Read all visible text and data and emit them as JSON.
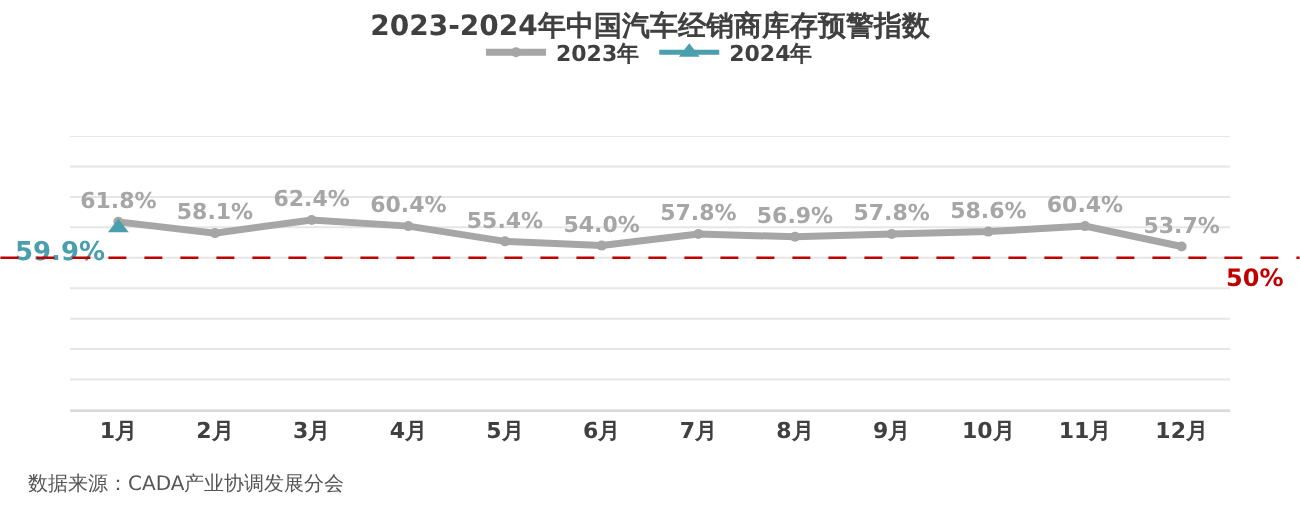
{
  "chart_data": {
    "type": "line",
    "title": "2023-2024年中国汽车经销商库存预警指数",
    "categories": [
      "1月",
      "2月",
      "3月",
      "4月",
      "5月",
      "6月",
      "7月",
      "8月",
      "9月",
      "10月",
      "11月",
      "12月"
    ],
    "series": [
      {
        "name": "2023年",
        "color": "#a6a6a6",
        "marker": "circle",
        "values": [
          61.8,
          58.1,
          62.4,
          60.4,
          55.4,
          54.0,
          57.8,
          56.9,
          57.8,
          58.6,
          60.4,
          53.7
        ],
        "value_labels": [
          "61.8%",
          "58.1%",
          "62.4%",
          "60.4%",
          "55.4%",
          "54.0%",
          "57.8%",
          "56.9%",
          "57.8%",
          "58.6%",
          "60.4%",
          "53.7%"
        ]
      },
      {
        "name": "2024年",
        "color": "#4a9fae",
        "marker": "triangle",
        "values": [
          59.9,
          null,
          null,
          null,
          null,
          null,
          null,
          null,
          null,
          null,
          null,
          null
        ],
        "value_labels": [
          "59.9%",
          null,
          null,
          null,
          null,
          null,
          null,
          null,
          null,
          null,
          null,
          null
        ]
      }
    ],
    "ylim": [
      0,
      90
    ],
    "yticks": [
      {
        "value": 0,
        "label": null
      },
      {
        "value": 10,
        "label": null
      },
      {
        "value": 20,
        "label": null
      },
      {
        "value": 30,
        "label": null
      },
      {
        "value": 40,
        "label": null
      },
      {
        "value": 50,
        "label": null
      },
      {
        "value": 60,
        "label": null
      },
      {
        "value": 70,
        "label": null
      },
      {
        "value": 80,
        "label": null
      },
      {
        "value": 90,
        "label": null
      }
    ],
    "grid": "y",
    "tick_labels": "x",
    "legend": "top",
    "ref_lines": [
      {
        "axis": "y",
        "value": 50,
        "label": "50%",
        "color": "#c00000",
        "line_style": "dashed"
      }
    ],
    "annotations": [
      "数据来源：CADA产业协调发展分会"
    ]
  }
}
